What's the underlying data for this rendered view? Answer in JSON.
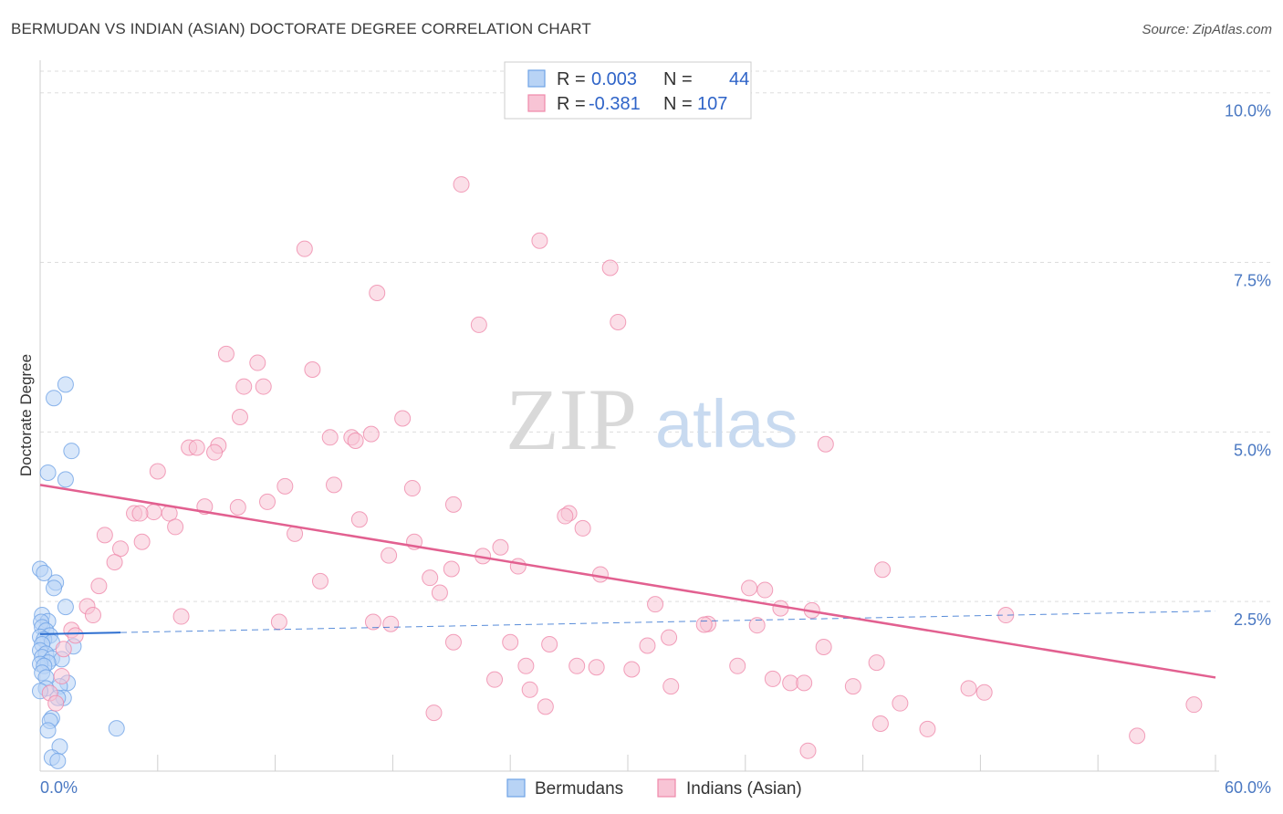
{
  "title": "BERMUDAN VS INDIAN (ASIAN) DOCTORATE DEGREE CORRELATION CHART",
  "source": "Source: ZipAtlas.com",
  "watermark": {
    "zip": "ZIP",
    "atlas": "atlas"
  },
  "legend": {
    "rows": [
      {
        "r_label": "R =",
        "r_value": "0.003",
        "n_label": "N =",
        "n_value": "44",
        "color": "#6fa3e6",
        "fill": "#b8d3f5"
      },
      {
        "r_label": "R =",
        "r_value": "-0.381",
        "n_label": "N =",
        "n_value": "107",
        "color": "#ef88aa",
        "fill": "#f8c4d5"
      }
    ]
  },
  "bottom_legend": [
    {
      "label": "Bermudans",
      "color": "#6fa3e6",
      "fill": "#b8d3f5"
    },
    {
      "label": "Indians (Asian)",
      "color": "#ef88aa",
      "fill": "#f8c4d5"
    }
  ],
  "chart_data": {
    "type": "scatter",
    "title": "BERMUDAN VS INDIAN (ASIAN) DOCTORATE DEGREE CORRELATION CHART",
    "xlabel": "",
    "ylabel": "Doctorate Degree",
    "xlim": [
      0,
      60
    ],
    "ylim": [
      0,
      10.4
    ],
    "x_tick_labels": [
      "0.0%",
      "60.0%"
    ],
    "y_ticks": [
      2.5,
      5.0,
      7.5,
      10.0
    ],
    "y_tick_labels": [
      "2.5%",
      "5.0%",
      "7.5%",
      "10.0%"
    ],
    "series": [
      {
        "name": "Bermudans",
        "color": "#6fa3e6",
        "fill": "#b8d3f5",
        "trend": {
          "x0": 0,
          "y0": 2.02,
          "x1": 60,
          "y1": 2.36,
          "solid_until_x": 4.1,
          "color": "#2e6fd0"
        },
        "points": [
          [
            0.0,
            2.98
          ],
          [
            0.2,
            2.92
          ],
          [
            0.8,
            2.78
          ],
          [
            0.7,
            2.7
          ],
          [
            1.3,
            2.42
          ],
          [
            0.1,
            2.3
          ],
          [
            0.4,
            2.21
          ],
          [
            0.05,
            2.2
          ],
          [
            0.1,
            2.12
          ],
          [
            0.3,
            2.07
          ],
          [
            0.5,
            2.0
          ],
          [
            0.0,
            1.98
          ],
          [
            0.2,
            1.94
          ],
          [
            0.6,
            1.9
          ],
          [
            0.1,
            1.87
          ],
          [
            1.7,
            1.84
          ],
          [
            0.0,
            1.78
          ],
          [
            0.3,
            1.73
          ],
          [
            0.1,
            1.68
          ],
          [
            0.6,
            1.66
          ],
          [
            1.1,
            1.65
          ],
          [
            0.4,
            1.6
          ],
          [
            0.0,
            1.58
          ],
          [
            0.2,
            1.55
          ],
          [
            0.1,
            1.45
          ],
          [
            0.3,
            1.38
          ],
          [
            1.4,
            1.3
          ],
          [
            1.0,
            1.25
          ],
          [
            0.3,
            1.22
          ],
          [
            0.0,
            1.18
          ],
          [
            1.2,
            1.08
          ],
          [
            0.9,
            1.08
          ],
          [
            0.6,
            0.78
          ],
          [
            0.5,
            0.74
          ],
          [
            0.4,
            0.6
          ],
          [
            3.9,
            0.63
          ],
          [
            1.0,
            0.36
          ],
          [
            0.6,
            0.2
          ],
          [
            0.9,
            0.15
          ],
          [
            1.3,
            5.7
          ],
          [
            0.7,
            5.5
          ],
          [
            1.6,
            4.72
          ],
          [
            0.4,
            4.4
          ],
          [
            1.3,
            4.3
          ]
        ]
      },
      {
        "name": "Indians (Asian)",
        "color": "#ef88aa",
        "fill": "#f8c4d5",
        "trend": {
          "x0": 0,
          "y0": 4.22,
          "x1": 60,
          "y1": 1.38,
          "color": "#e26090"
        },
        "points": [
          [
            21.5,
            8.65
          ],
          [
            25.5,
            7.82
          ],
          [
            13.5,
            7.7
          ],
          [
            29.1,
            7.42
          ],
          [
            17.2,
            7.05
          ],
          [
            22.4,
            6.58
          ],
          [
            29.5,
            6.62
          ],
          [
            9.5,
            6.15
          ],
          [
            11.1,
            6.02
          ],
          [
            13.9,
            5.92
          ],
          [
            10.4,
            5.67
          ],
          [
            11.4,
            5.67
          ],
          [
            10.2,
            5.22
          ],
          [
            18.5,
            5.2
          ],
          [
            14.8,
            4.92
          ],
          [
            15.9,
            4.92
          ],
          [
            16.1,
            4.87
          ],
          [
            16.9,
            4.97
          ],
          [
            9.1,
            4.8
          ],
          [
            7.6,
            4.77
          ],
          [
            8.0,
            4.77
          ],
          [
            8.9,
            4.7
          ],
          [
            40.1,
            4.82
          ],
          [
            6.0,
            4.42
          ],
          [
            12.5,
            4.2
          ],
          [
            15.0,
            4.22
          ],
          [
            19.0,
            4.17
          ],
          [
            11.6,
            3.97
          ],
          [
            21.1,
            3.93
          ],
          [
            8.4,
            3.9
          ],
          [
            10.1,
            3.89
          ],
          [
            5.8,
            3.82
          ],
          [
            4.8,
            3.8
          ],
          [
            5.1,
            3.8
          ],
          [
            6.6,
            3.8
          ],
          [
            27.0,
            3.8
          ],
          [
            26.8,
            3.76
          ],
          [
            16.3,
            3.71
          ],
          [
            6.9,
            3.6
          ],
          [
            27.7,
            3.58
          ],
          [
            3.3,
            3.48
          ],
          [
            13.0,
            3.5
          ],
          [
            5.2,
            3.38
          ],
          [
            19.1,
            3.38
          ],
          [
            4.1,
            3.28
          ],
          [
            23.5,
            3.3
          ],
          [
            22.6,
            3.17
          ],
          [
            17.8,
            3.18
          ],
          [
            3.8,
            3.08
          ],
          [
            24.4,
            3.02
          ],
          [
            21.0,
            2.98
          ],
          [
            43.0,
            2.97
          ],
          [
            28.6,
            2.9
          ],
          [
            19.9,
            2.85
          ],
          [
            14.3,
            2.8
          ],
          [
            3.0,
            2.73
          ],
          [
            36.2,
            2.7
          ],
          [
            37.0,
            2.67
          ],
          [
            20.4,
            2.63
          ],
          [
            2.4,
            2.43
          ],
          [
            31.4,
            2.46
          ],
          [
            37.8,
            2.4
          ],
          [
            39.4,
            2.37
          ],
          [
            2.7,
            2.3
          ],
          [
            7.2,
            2.28
          ],
          [
            49.3,
            2.3
          ],
          [
            12.2,
            2.2
          ],
          [
            17.0,
            2.2
          ],
          [
            17.9,
            2.17
          ],
          [
            34.1,
            2.17
          ],
          [
            33.9,
            2.16
          ],
          [
            36.6,
            2.15
          ],
          [
            1.6,
            2.08
          ],
          [
            1.8,
            2.0
          ],
          [
            32.1,
            1.97
          ],
          [
            21.1,
            1.9
          ],
          [
            24.0,
            1.9
          ],
          [
            26.0,
            1.87
          ],
          [
            31.0,
            1.85
          ],
          [
            40.0,
            1.83
          ],
          [
            1.2,
            1.8
          ],
          [
            42.7,
            1.6
          ],
          [
            24.8,
            1.55
          ],
          [
            27.4,
            1.55
          ],
          [
            28.4,
            1.53
          ],
          [
            35.6,
            1.55
          ],
          [
            30.2,
            1.5
          ],
          [
            1.1,
            1.4
          ],
          [
            23.2,
            1.35
          ],
          [
            37.4,
            1.36
          ],
          [
            38.3,
            1.3
          ],
          [
            39.0,
            1.3
          ],
          [
            32.2,
            1.25
          ],
          [
            41.5,
            1.25
          ],
          [
            25.0,
            1.2
          ],
          [
            47.4,
            1.22
          ],
          [
            48.2,
            1.16
          ],
          [
            0.5,
            1.15
          ],
          [
            43.9,
            1.0
          ],
          [
            58.9,
            0.98
          ],
          [
            25.8,
            0.95
          ],
          [
            20.1,
            0.86
          ],
          [
            42.9,
            0.7
          ],
          [
            45.3,
            0.62
          ],
          [
            56.0,
            0.52
          ],
          [
            39.2,
            0.3
          ],
          [
            0.8,
            1.0
          ]
        ]
      }
    ]
  }
}
